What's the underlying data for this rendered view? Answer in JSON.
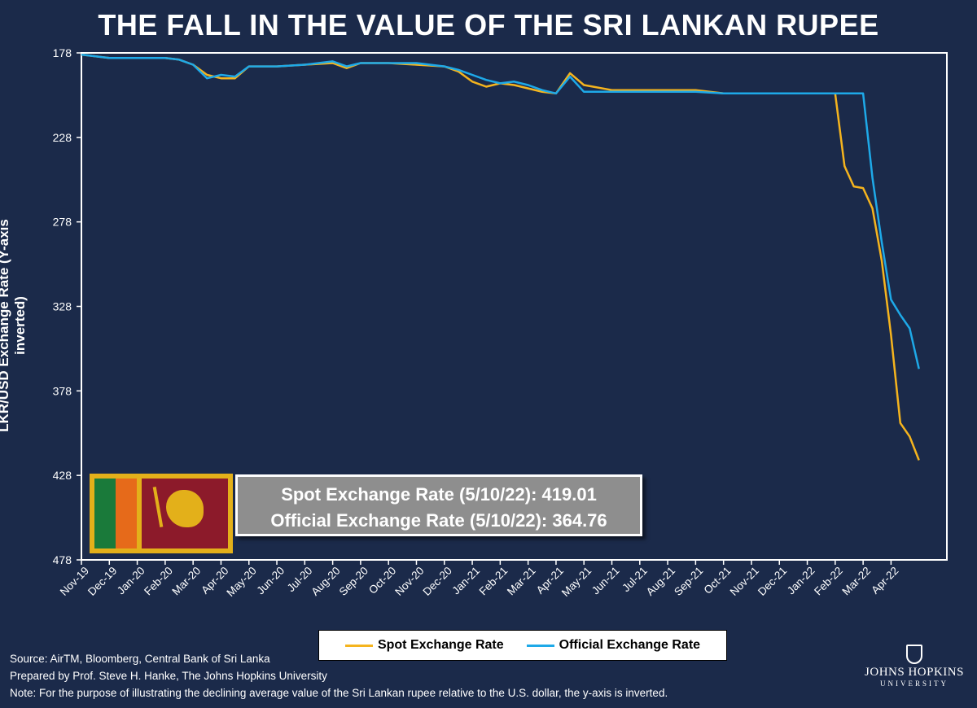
{
  "title": "THE FALL IN THE VALUE OF THE SRI LANKAN RUPEE",
  "colors": {
    "background": "#1b2a4a",
    "spot": "#f5b41e",
    "official": "#1ea9e8",
    "axis": "#ffffff"
  },
  "infobox": {
    "line1": "Spot Exchange Rate (5/10/22): 419.01",
    "line2": "Official Exchange Rate (5/10/22): 364.76"
  },
  "footer": {
    "source": "Source: AirTM, Bloomberg, Central Bank of Sri Lanka",
    "prepared": "Prepared by Prof. Steve H. Hanke, The Johns Hopkins University",
    "note": "Note: For the purpose of illustrating the declining average value of the Sri Lankan rupee relative to the U.S. dollar, the y-axis is inverted."
  },
  "logo": {
    "name": "JOHNS HOPKINS",
    "sub": "UNIVERSITY"
  },
  "chart_data": {
    "type": "line",
    "title": "THE FALL IN THE VALUE OF THE SRI LANKAN RUPEE",
    "ylabel": "LKR/USD Exchange Rate (Y-axis inverted)",
    "xlabel": "",
    "y_inverted": true,
    "ylim": [
      178,
      478
    ],
    "y_ticks": [
      178,
      228,
      278,
      328,
      378,
      428,
      478
    ],
    "x_ticks": [
      "Nov-19",
      "Dec-19",
      "Jan-20",
      "Feb-20",
      "Mar-20",
      "Apr-20",
      "May-20",
      "Jun-20",
      "Jul-20",
      "Aug-20",
      "Sep-20",
      "Oct-20",
      "Nov-20",
      "Dec-20",
      "Jan-21",
      "Feb-21",
      "Mar-21",
      "Apr-21",
      "May-21",
      "Jun-21",
      "Jul-21",
      "Aug-21",
      "Sep-21",
      "Oct-21",
      "Nov-21",
      "Dec-21",
      "Jan-22",
      "Feb-22",
      "Mar-22",
      "Apr-22"
    ],
    "x_range": [
      "Nov-19",
      "May-22"
    ],
    "grid": false,
    "legend_position": "bottom",
    "series": [
      {
        "name": "Spot Exchange Rate",
        "color": "#f5b41e",
        "x": [
          "Nov-19",
          "Dec-19",
          "Jan-20",
          "Feb-20",
          "Feb-20",
          "Mar-20",
          "Mar-20",
          "Apr-20",
          "Apr-20",
          "May-20",
          "Jun-20",
          "Jul-20",
          "Aug-20",
          "Aug-20",
          "Sep-20",
          "Oct-20",
          "Nov-20",
          "Dec-20",
          "Dec-20",
          "Jan-21",
          "Jan-21",
          "Feb-21",
          "Feb-21",
          "Mar-21",
          "Mar-21",
          "Apr-21",
          "Apr-21",
          "May-21",
          "Jun-21",
          "Jul-21",
          "Aug-21",
          "Sep-21",
          "Oct-21",
          "Nov-21",
          "Dec-21",
          "Jan-22",
          "Feb-22",
          "Feb-22",
          "Feb-22",
          "Mar-22",
          "Mar-22",
          "Mar-22",
          "Apr-22",
          "Apr-22",
          "Apr-22",
          "May-22"
        ],
        "y": [
          179,
          181,
          181,
          181,
          182,
          185,
          191,
          193,
          193,
          186,
          186,
          185,
          184,
          187,
          184,
          184,
          185,
          186,
          189,
          195,
          198,
          196,
          197,
          199,
          201,
          202,
          190,
          197,
          200,
          200,
          200,
          200,
          202,
          202,
          202,
          202,
          202,
          245,
          257,
          258,
          270,
          301,
          345,
          397,
          405,
          419
        ]
      },
      {
        "name": "Official Exchange Rate",
        "color": "#1ea9e8",
        "x": [
          "Nov-19",
          "Dec-19",
          "Jan-20",
          "Feb-20",
          "Feb-20",
          "Mar-20",
          "Mar-20",
          "Apr-20",
          "Apr-20",
          "May-20",
          "Jun-20",
          "Jul-20",
          "Aug-20",
          "Aug-20",
          "Sep-20",
          "Oct-20",
          "Nov-20",
          "Dec-20",
          "Dec-20",
          "Jan-21",
          "Jan-21",
          "Feb-21",
          "Feb-21",
          "Mar-21",
          "Mar-21",
          "Apr-21",
          "Apr-21",
          "May-21",
          "Jun-21",
          "Jul-21",
          "Aug-21",
          "Sep-21",
          "Oct-21",
          "Nov-21",
          "Dec-21",
          "Jan-22",
          "Feb-22",
          "Mar-22",
          "Mar-22",
          "Mar-22",
          "Apr-22",
          "Apr-22",
          "Apr-22",
          "May-22"
        ],
        "y": [
          179,
          181,
          181,
          181,
          182,
          185,
          193,
          191,
          192,
          186,
          186,
          185,
          183,
          186,
          184,
          184,
          184,
          186,
          188,
          191,
          194,
          196,
          195,
          197,
          200,
          202,
          192,
          201,
          201,
          201,
          201,
          201,
          202,
          202,
          202,
          202,
          202,
          202,
          252,
          290,
          324,
          333,
          341,
          365
        ]
      }
    ]
  }
}
